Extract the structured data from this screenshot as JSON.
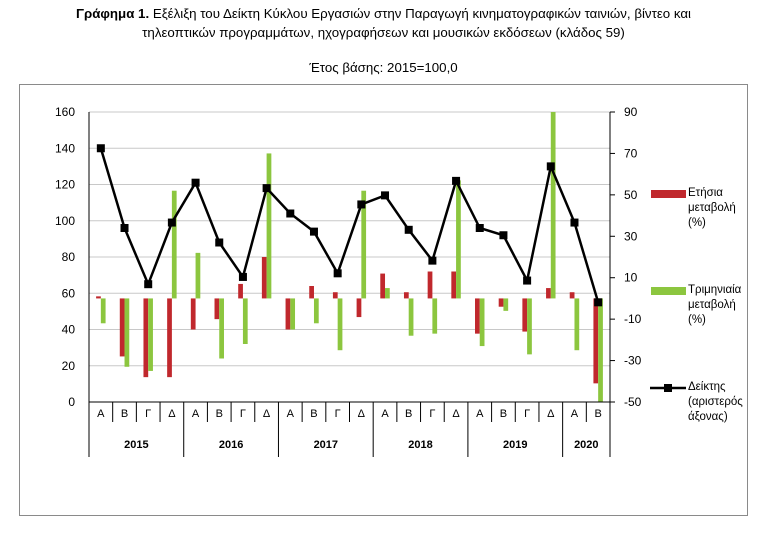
{
  "header": {
    "title_bold": "Γράφημα 1.",
    "title_line1": " Εξέλιξη του Δείκτη Κύκλου Εργασιών στην Παραγωγή κινηματογραφικών ταινιών, βίντεο και",
    "title_line2": "τηλεοπτικών προγραμμάτων, ηχογραφήσεων και μουσικών εκδόσεων (κλάδος 59)",
    "subtitle": "Έτος βάσης: 2015=100,0"
  },
  "chart_data": {
    "type": "bar",
    "categories": [
      "Α",
      "Β",
      "Γ",
      "Δ",
      "Α",
      "Β",
      "Γ",
      "Δ",
      "Α",
      "Β",
      "Γ",
      "Δ",
      "Α",
      "Β",
      "Γ",
      "Δ",
      "Α",
      "Β",
      "Γ",
      "Δ",
      "Α",
      "Β"
    ],
    "years": [
      {
        "label": "2015",
        "count": 4
      },
      {
        "label": "2016",
        "count": 4
      },
      {
        "label": "2017",
        "count": 4
      },
      {
        "label": "2018",
        "count": 4
      },
      {
        "label": "2019",
        "count": 4
      },
      {
        "label": "2020",
        "count": 2
      }
    ],
    "left_axis": {
      "min": 0,
      "max": 160,
      "step": 20,
      "ticks": [
        "0",
        "20",
        "40",
        "60",
        "80",
        "100",
        "120",
        "140",
        "160"
      ]
    },
    "right_axis": {
      "min": -50,
      "max": 90,
      "step": 20,
      "ticks": [
        "-50",
        "-30",
        "-10",
        "10",
        "30",
        "50",
        "70",
        "90"
      ]
    },
    "series": [
      {
        "name": "Ετήσια μεταβολή (%)",
        "axis": "right",
        "kind": "bar",
        "color": "#c0282d",
        "values": [
          1,
          -28,
          -38,
          -38,
          -15,
          -10,
          7,
          20,
          -15,
          6,
          3,
          -9,
          12,
          3,
          13,
          13,
          -17,
          -4,
          -16,
          5,
          3,
          -41
        ]
      },
      {
        "name": "Τριμηνιαία μεταβολή (%)",
        "axis": "right",
        "kind": "bar",
        "color": "#8cc63f",
        "values": [
          -12,
          -33,
          -35,
          52,
          22,
          -29,
          -22,
          70,
          -15,
          -12,
          -25,
          52,
          5,
          -18,
          -17,
          57,
          -23,
          -6,
          -27,
          90,
          -25,
          -50
        ]
      },
      {
        "name": "Δείκτης (αριστερός άξονας)",
        "axis": "left",
        "kind": "line",
        "color": "#000000",
        "values": [
          140,
          96,
          65,
          99,
          121,
          88,
          69,
          118,
          104,
          94,
          71,
          109,
          114,
          95,
          78,
          122,
          96,
          92,
          67,
          130,
          99,
          55
        ]
      }
    ]
  },
  "legend": [
    {
      "line1": "Ετήσια",
      "line2": "μεταβολή",
      "line3": "(%)"
    },
    {
      "line1": "Τριμηνιαία",
      "line2": "μεταβολή",
      "line3": "(%)"
    },
    {
      "line1": "Δείκτης",
      "line2": "(αριστερός",
      "line3": "άξονας)"
    }
  ]
}
